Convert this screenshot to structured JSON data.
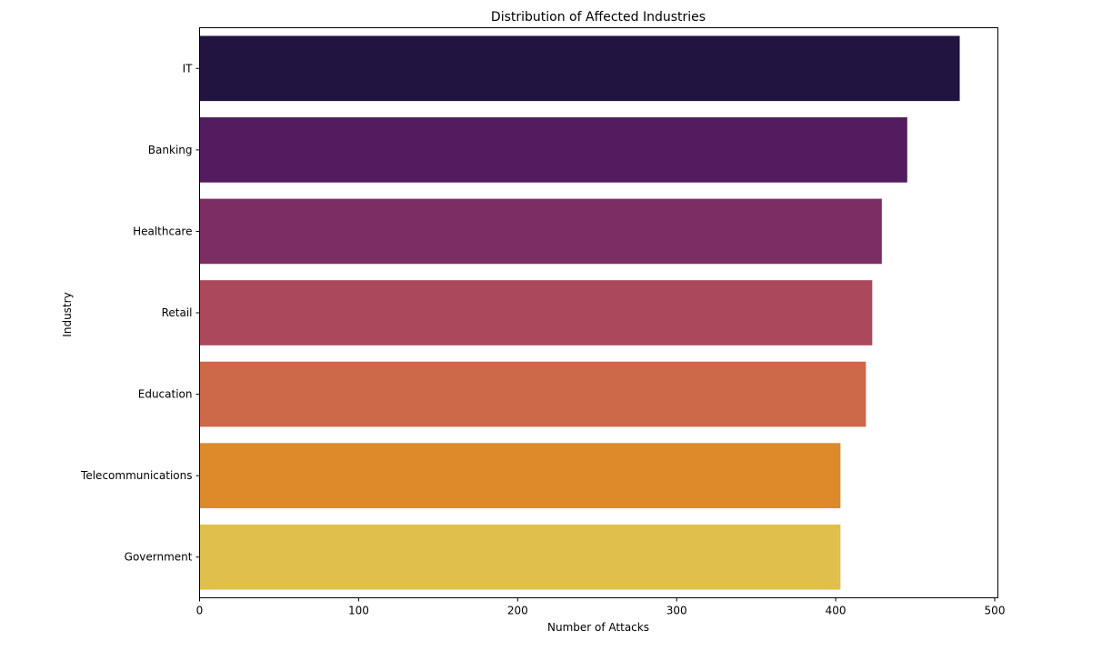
{
  "chart_data": {
    "type": "bar",
    "orientation": "horizontal",
    "title": "Distribution of Affected Industries",
    "xlabel": "Number of Attacks",
    "ylabel": "Industry",
    "categories": [
      "IT",
      "Banking",
      "Healthcare",
      "Retail",
      "Education",
      "Telecommunications",
      "Government"
    ],
    "values": [
      478,
      445,
      429,
      423,
      419,
      403,
      403
    ],
    "colors": [
      "#221440",
      "#521c5e",
      "#7b2d64",
      "#ab485b",
      "#cd6849",
      "#dc8a2a",
      "#e1bf4c"
    ],
    "xlim": [
      0,
      502
    ],
    "xticks": [
      0,
      100,
      200,
      300,
      400,
      500
    ],
    "grid": false,
    "legend": false
  }
}
